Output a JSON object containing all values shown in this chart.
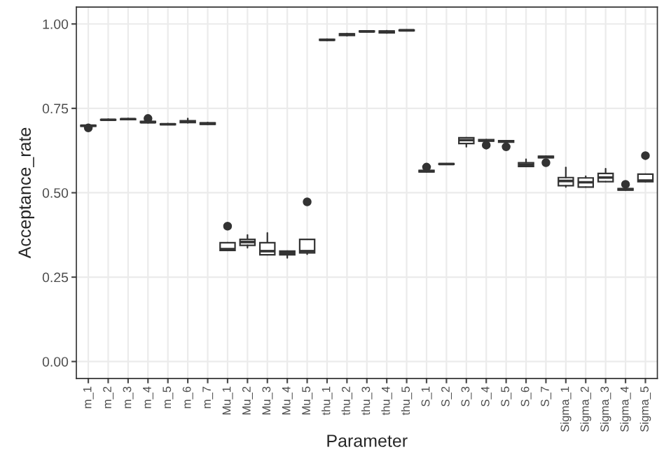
{
  "chart_data": {
    "type": "box",
    "xlabel": "Parameter",
    "ylabel": "Acceptance_rate",
    "categories": [
      "m_1",
      "m_2",
      "m_3",
      "m_4",
      "m_5",
      "m_6",
      "m_7",
      "Mu_1",
      "Mu_2",
      "Mu_3",
      "Mu_4",
      "Mu_5",
      "thu_1",
      "thu_2",
      "thu_3",
      "thu_4",
      "thu_5",
      "S_1",
      "S_2",
      "S_3",
      "S_4",
      "S_5",
      "S_6",
      "S_7",
      "Sigma_1",
      "Sigma_2",
      "Sigma_3",
      "Sigma_4",
      "Sigma_5"
    ],
    "boxes": [
      {
        "low": 0.697,
        "q1": 0.697,
        "median": 0.699,
        "q3": 0.7,
        "high": 0.701,
        "outliers": [
          0.692
        ]
      },
      {
        "low": 0.715,
        "q1": 0.715,
        "median": 0.716,
        "q3": 0.717,
        "high": 0.718
      },
      {
        "low": 0.717,
        "q1": 0.717,
        "median": 0.718,
        "q3": 0.719,
        "high": 0.72
      },
      {
        "low": 0.707,
        "q1": 0.708,
        "median": 0.709,
        "q3": 0.711,
        "high": 0.712,
        "outliers": [
          0.72
        ]
      },
      {
        "low": 0.702,
        "q1": 0.702,
        "median": 0.703,
        "q3": 0.704,
        "high": 0.705
      },
      {
        "low": 0.707,
        "q1": 0.708,
        "median": 0.71,
        "q3": 0.713,
        "high": 0.72
      },
      {
        "low": 0.703,
        "q1": 0.703,
        "median": 0.705,
        "q3": 0.707,
        "high": 0.708
      },
      {
        "low": 0.329,
        "q1": 0.329,
        "median": 0.333,
        "q3": 0.352,
        "high": 0.352,
        "outliers": [
          0.401
        ]
      },
      {
        "low": 0.337,
        "q1": 0.344,
        "median": 0.354,
        "q3": 0.362,
        "high": 0.375
      },
      {
        "low": 0.316,
        "q1": 0.316,
        "median": 0.327,
        "q3": 0.352,
        "high": 0.381
      },
      {
        "low": 0.307,
        "q1": 0.316,
        "median": 0.322,
        "q3": 0.327,
        "high": 0.327
      },
      {
        "low": 0.318,
        "q1": 0.322,
        "median": 0.327,
        "q3": 0.362,
        "high": 0.362,
        "outliers": [
          0.473
        ]
      },
      {
        "low": 0.951,
        "q1": 0.952,
        "median": 0.953,
        "q3": 0.954,
        "high": 0.955
      },
      {
        "low": 0.965,
        "q1": 0.966,
        "median": 0.969,
        "q3": 0.971,
        "high": 0.972
      },
      {
        "low": 0.977,
        "q1": 0.977,
        "median": 0.978,
        "q3": 0.979,
        "high": 0.979
      },
      {
        "low": 0.973,
        "q1": 0.974,
        "median": 0.977,
        "q3": 0.979,
        "high": 0.98
      },
      {
        "low": 0.98,
        "q1": 0.98,
        "median": 0.981,
        "q3": 0.982,
        "high": 0.982
      },
      {
        "low": 0.562,
        "q1": 0.562,
        "median": 0.564,
        "q3": 0.566,
        "high": 0.566,
        "outliers": [
          0.576
        ]
      },
      {
        "low": 0.584,
        "q1": 0.584,
        "median": 0.585,
        "q3": 0.586,
        "high": 0.586
      },
      {
        "low": 0.636,
        "q1": 0.646,
        "median": 0.656,
        "q3": 0.663,
        "high": 0.663
      },
      {
        "low": 0.653,
        "q1": 0.653,
        "median": 0.655,
        "q3": 0.657,
        "high": 0.657,
        "outliers": [
          0.641
        ]
      },
      {
        "low": 0.65,
        "q1": 0.65,
        "median": 0.652,
        "q3": 0.654,
        "high": 0.654,
        "outliers": [
          0.636
        ]
      },
      {
        "low": 0.578,
        "q1": 0.578,
        "median": 0.583,
        "q3": 0.589,
        "high": 0.599
      },
      {
        "low": 0.604,
        "q1": 0.604,
        "median": 0.606,
        "q3": 0.608,
        "high": 0.608,
        "outliers": [
          0.589
        ]
      },
      {
        "low": 0.517,
        "q1": 0.521,
        "median": 0.535,
        "q3": 0.545,
        "high": 0.575
      },
      {
        "low": 0.517,
        "q1": 0.517,
        "median": 0.531,
        "q3": 0.544,
        "high": 0.549
      },
      {
        "low": 0.533,
        "q1": 0.533,
        "median": 0.545,
        "q3": 0.557,
        "high": 0.571
      },
      {
        "low": 0.508,
        "q1": 0.508,
        "median": 0.51,
        "q3": 0.512,
        "high": 0.512,
        "outliers": [
          0.525
        ]
      },
      {
        "low": 0.533,
        "q1": 0.533,
        "median": 0.536,
        "q3": 0.555,
        "high": 0.555,
        "outliers": [
          0.61
        ]
      }
    ],
    "ylim": [
      -0.05,
      1.05
    ],
    "yticks": [
      {
        "value": 0,
        "label": "0.00"
      },
      {
        "value": 0.25,
        "label": "0.25"
      },
      {
        "value": 0.5,
        "label": "0.50"
      },
      {
        "value": 0.75,
        "label": "0.75"
      },
      {
        "value": 1,
        "label": "1.00"
      }
    ],
    "grid": true
  }
}
